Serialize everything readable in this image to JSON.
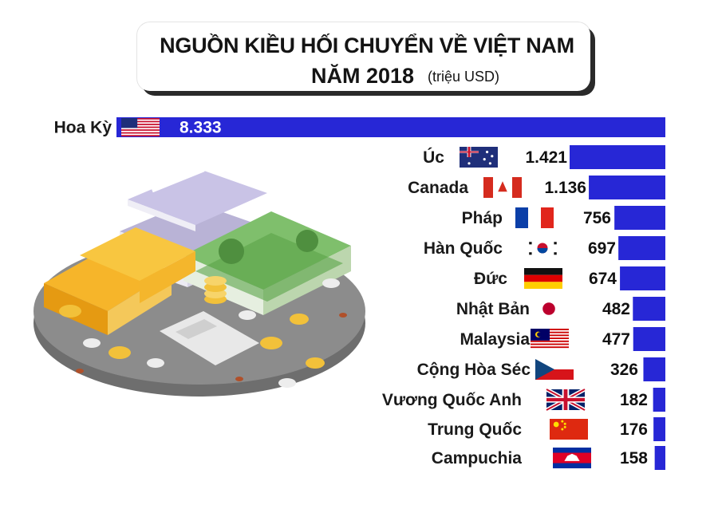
{
  "title": {
    "line1": "NGUỒN KIỀU HỐI CHUYỂN VỀ VIỆT NAM",
    "line2": "NĂM 2018",
    "unit": "(triệu USD)"
  },
  "colors": {
    "bar": "#2727d6",
    "text": "#1a1a1a",
    "platform": "#8c8c8c"
  },
  "chart_data": {
    "type": "bar",
    "orientation": "horizontal",
    "title": "NGUỒN KIỀU HỐI CHUYỂN VỀ VIỆT NAM NĂM 2018",
    "unit": "triệu USD",
    "categories": [
      "Hoa Kỳ",
      "Úc",
      "Canada",
      "Pháp",
      "Hàn Quốc",
      "Đức",
      "Nhật Bản",
      "Malaysia",
      "Cộng Hòa Séc",
      "Vương Quốc Anh",
      "Trung Quốc",
      "Campuchia"
    ],
    "values": [
      8333,
      1421,
      1136,
      756,
      697,
      674,
      482,
      477,
      326,
      182,
      176,
      158
    ],
    "value_labels": [
      "8.333",
      "1.421",
      "1.136",
      "756",
      "697",
      "674",
      "482",
      "477",
      "326",
      "182",
      "176",
      "158"
    ],
    "flags": [
      "us-flag-icon",
      "au-flag-icon",
      "ca-flag-icon",
      "fr-flag-icon",
      "kr-flag-icon",
      "de-flag-icon",
      "jp-flag-icon",
      "my-flag-icon",
      "cz-flag-icon",
      "gb-flag-icon",
      "cn-flag-icon",
      "kh-flag-icon"
    ],
    "grid": false,
    "legend": "none"
  }
}
